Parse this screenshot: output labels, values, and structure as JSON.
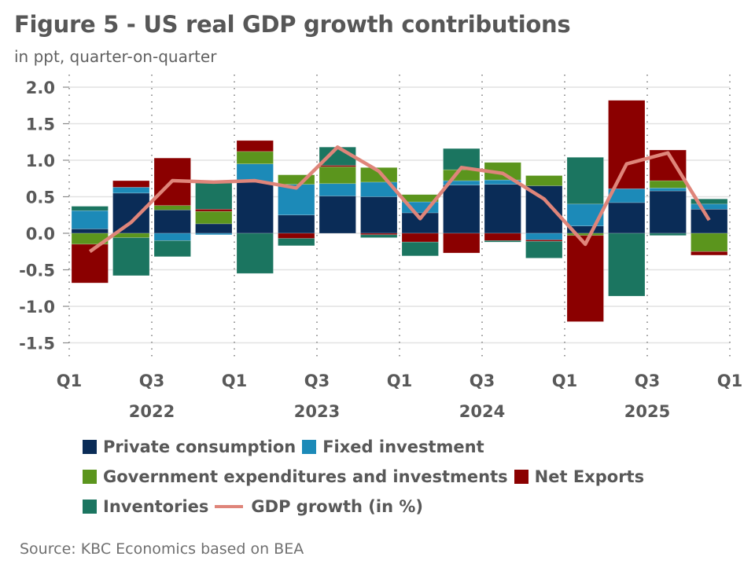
{
  "header": {
    "title": "Figure 5 - US real GDP growth contributions",
    "subtitle": "in ppt, quarter-on-quarter"
  },
  "source": "Source: KBC Economics based on BEA",
  "chart_data": {
    "type": "bar",
    "stacked": true,
    "title": "Figure 5 - US real GDP growth contributions",
    "subtitle": "in ppt, quarter-on-quarter",
    "xlabel": "",
    "ylabel": "",
    "ylim": [
      -1.5,
      2.0
    ],
    "yticks": [
      2.0,
      1.5,
      1.0,
      0.5,
      0.0,
      -0.5,
      -1.0,
      -1.5
    ],
    "ytick_labels": [
      "2.0",
      "1.5",
      "1.0",
      "0.5",
      "0.0",
      "-0.5",
      "-1.0",
      "-1.5"
    ],
    "grid": true,
    "categories": [
      "2022Q1",
      "2022Q2",
      "2022Q3",
      "2022Q4",
      "2023Q1",
      "2023Q2",
      "2023Q3",
      "2023Q4",
      "2024Q1",
      "2024Q2",
      "2024Q3",
      "2024Q4",
      "2025Q1",
      "2025Q2",
      "2025Q3",
      "2025Q4"
    ],
    "x_tick_labels": [
      "Q1",
      "Q3",
      "Q1",
      "Q3",
      "Q1",
      "Q3",
      "Q1",
      "Q3",
      "Q1"
    ],
    "year_labels": [
      "2022",
      "2023",
      "2024",
      "2025"
    ],
    "legend_position": "bottom",
    "series": [
      {
        "name": "Private consumption",
        "color": "#0a2c57",
        "kind": "bar",
        "values": [
          0.06,
          0.55,
          0.32,
          0.13,
          0.7,
          0.25,
          0.51,
          0.5,
          0.28,
          0.66,
          0.67,
          0.65,
          0.1,
          0.42,
          0.58,
          0.33
        ]
      },
      {
        "name": "Fixed investment",
        "color": "#1c8ab8",
        "kind": "bar",
        "values": [
          0.25,
          0.08,
          -0.1,
          -0.02,
          0.25,
          0.42,
          0.17,
          0.2,
          0.15,
          0.06,
          0.06,
          -0.09,
          0.3,
          0.19,
          0.04,
          0.07
        ]
      },
      {
        "name": "Government expenditures and investments",
        "color": "#5b951d",
        "kind": "bar",
        "values": [
          -0.15,
          -0.06,
          0.06,
          0.17,
          0.17,
          0.13,
          0.23,
          0.2,
          0.1,
          0.15,
          0.24,
          0.14,
          -0.03,
          0.0,
          0.1,
          -0.25
        ]
      },
      {
        "name": "Net Exports",
        "color": "#8b0000",
        "kind": "bar",
        "values": [
          -0.53,
          0.09,
          0.65,
          0.03,
          0.15,
          -0.07,
          0.02,
          -0.02,
          -0.12,
          -0.27,
          -0.1,
          -0.02,
          -1.18,
          1.21,
          0.42,
          -0.05
        ]
      },
      {
        "name": "Inventories",
        "color": "#1b7560",
        "kind": "bar",
        "values": [
          0.06,
          -0.52,
          -0.22,
          0.36,
          -0.55,
          -0.1,
          0.25,
          -0.04,
          -0.19,
          0.29,
          -0.02,
          -0.23,
          0.64,
          -0.86,
          -0.03,
          0.07
        ]
      },
      {
        "name": "GDP growth (in %)",
        "color": "#df857a",
        "kind": "line",
        "values": [
          -0.25,
          0.15,
          0.72,
          0.7,
          0.72,
          0.62,
          1.18,
          0.85,
          0.2,
          0.9,
          0.82,
          0.47,
          -0.15,
          0.95,
          1.1,
          0.18
        ]
      }
    ]
  },
  "legend": {
    "rows": [
      [
        {
          "label": "Private consumption",
          "color": "#0a2c57",
          "type": "box"
        },
        {
          "label": "Fixed investment",
          "color": "#1c8ab8",
          "type": "box"
        }
      ],
      [
        {
          "label": "Government expenditures and investments",
          "color": "#5b951d",
          "type": "box"
        },
        {
          "label": "Net Exports",
          "color": "#8b0000",
          "type": "box"
        }
      ],
      [
        {
          "label": "Inventories",
          "color": "#1b7560",
          "type": "box"
        },
        {
          "label": "GDP growth (in %)",
          "color": "#df857a",
          "type": "line"
        }
      ]
    ]
  }
}
